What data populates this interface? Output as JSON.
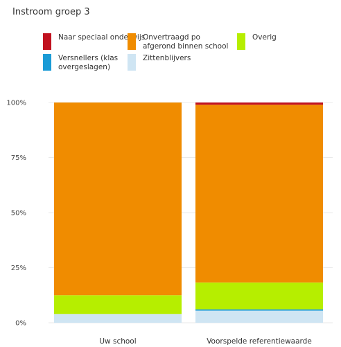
{
  "chart_data": {
    "type": "bar",
    "stacked": true,
    "percent": true,
    "title": "Instroom groep 3",
    "categories": [
      "Uw school",
      "Voorspelde referentiewaarde"
    ],
    "ylim": [
      0,
      1
    ],
    "ytick_values": [
      0,
      0.25,
      0.5,
      0.75,
      1
    ],
    "ytick_labels": [
      "0%",
      "25%",
      "50%",
      "75%",
      "100%"
    ],
    "grid": true,
    "legend_position": "top",
    "series": [
      {
        "name": "Zittenblijvers",
        "color": "#cfe5f3",
        "values": [
          0.04,
          0.055
        ]
      },
      {
        "name": "Versnellers (klas overgeslagen)",
        "color": "#1a9bd6",
        "values": [
          0.0,
          0.006
        ]
      },
      {
        "name": "Overig",
        "color": "#b6ee00",
        "values": [
          0.085,
          0.122
        ]
      },
      {
        "name": "Onvertraagd po afgerond binnen school",
        "color": "#f08c00",
        "values": [
          0.875,
          0.807
        ]
      },
      {
        "name": "Naar speciaal onderwijs",
        "color": "#c1121f",
        "values": [
          0.0,
          0.01
        ]
      }
    ],
    "legend_order": [
      4,
      3,
      2,
      1,
      0
    ]
  }
}
